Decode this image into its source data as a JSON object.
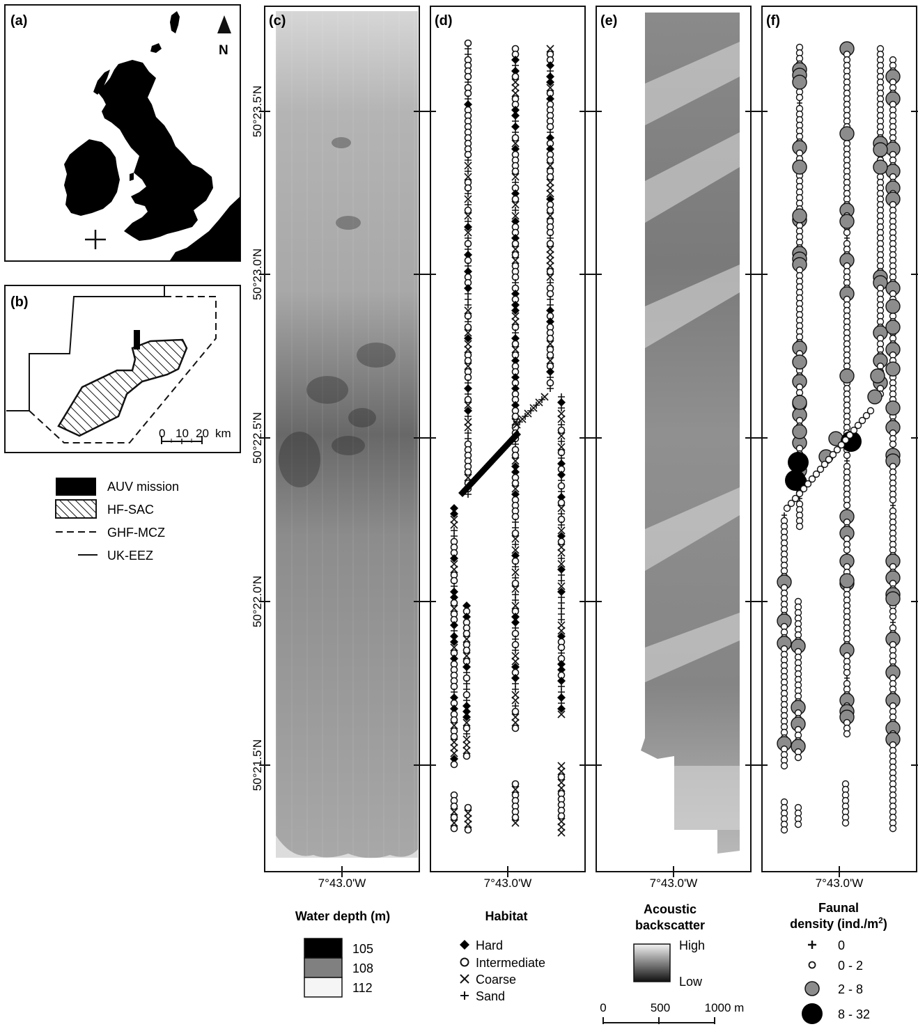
{
  "panels": {
    "a": {
      "label": "(a)",
      "north": "N"
    },
    "b": {
      "label": "(b)",
      "scale": {
        "ticks": [
          "0",
          "10",
          "20"
        ],
        "unit": "km"
      }
    },
    "c": {
      "label": "(c)"
    },
    "d": {
      "label": "(d)"
    },
    "e": {
      "label": "(e)"
    },
    "f": {
      "label": "(f)"
    }
  },
  "legend_b": [
    {
      "key": "auv",
      "label": "AUV mission"
    },
    {
      "key": "sac",
      "label": "HF-SAC"
    },
    {
      "key": "mcz",
      "label": "GHF-MCZ"
    },
    {
      "key": "eez",
      "label": "UK-EEZ"
    }
  ],
  "lat_labels": [
    "50°23.5'N",
    "50°23.0'N",
    "50°22.5'N",
    "50°22.0'N",
    "50°21.5'N"
  ],
  "lon_label": "7°43.0'W",
  "legend_depth": {
    "title": "Water depth (m)",
    "values": [
      "105",
      "108",
      "112"
    ],
    "colors": [
      "#000000",
      "#808080",
      "#f5f5f5"
    ]
  },
  "legend_habitat": {
    "title": "Habitat",
    "items": [
      {
        "symbol": "diamond",
        "label": "Hard"
      },
      {
        "symbol": "circle",
        "label": "Intermediate"
      },
      {
        "symbol": "cross-x",
        "label": "Coarse"
      },
      {
        "symbol": "plus",
        "label": "Sand"
      }
    ]
  },
  "legend_backscatter": {
    "title_line1": "Acoustic",
    "title_line2": "backscatter",
    "high": "High",
    "low": "Low"
  },
  "legend_fauna": {
    "title_line1": "Faunal",
    "title_line2": "density (ind./m",
    "title_sup": "2",
    "title_end": ")",
    "items": [
      {
        "symbol": "plus",
        "label": "0"
      },
      {
        "symbol": "small-open",
        "label": "0 - 2"
      },
      {
        "symbol": "medium-grey",
        "label": "2 - 8"
      },
      {
        "symbol": "large-black",
        "label": "8 - 32"
      }
    ]
  },
  "scale_bar": {
    "ticks": [
      "0",
      "500",
      "1000 m"
    ]
  }
}
